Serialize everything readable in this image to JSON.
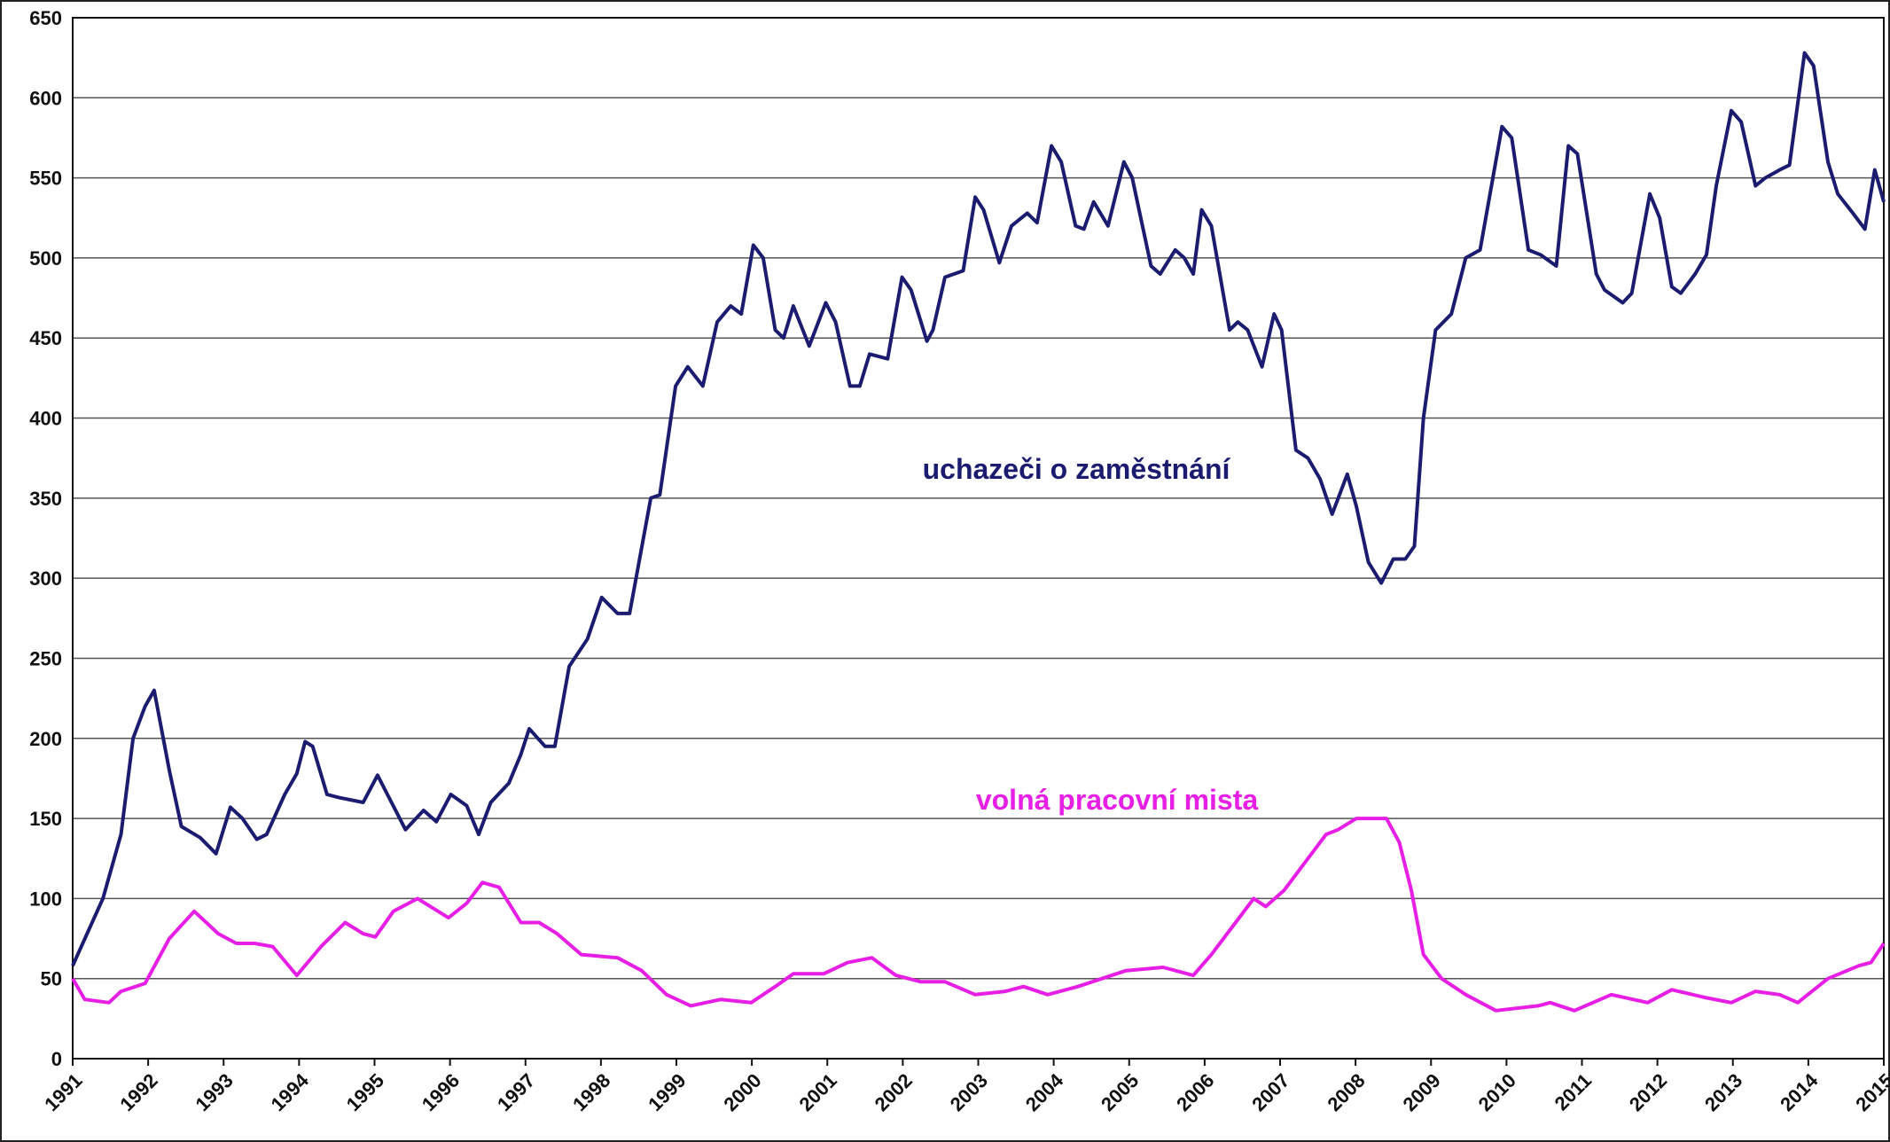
{
  "chart_data": {
    "type": "line",
    "xlim": [
      1991,
      2015
    ],
    "xticks": [
      1991,
      1992,
      1993,
      1994,
      1995,
      1996,
      1997,
      1998,
      1999,
      2000,
      2001,
      2002,
      2003,
      2004,
      2005,
      2006,
      2007,
      2008,
      2009,
      2010,
      2011,
      2012,
      2013,
      2014,
      2015
    ],
    "ylim": [
      0,
      650
    ],
    "yticks": [
      0,
      50,
      100,
      150,
      200,
      250,
      300,
      350,
      400,
      450,
      500,
      550,
      600,
      650
    ],
    "grid": true,
    "annotations": [
      "uchazeči o zaměstnání",
      "volná pracovní mista"
    ],
    "series": [
      {
        "name": "uchazeči o zaměstnání",
        "color": "#1b1b6f",
        "x": [
          1991.0,
          1991.4,
          1991.64,
          1991.8,
          1991.96,
          1992.08,
          1992.28,
          1992.44,
          1992.69,
          1992.9,
          1993.09,
          1993.25,
          1993.44,
          1993.57,
          1993.81,
          1993.97,
          1994.08,
          1994.18,
          1994.37,
          1994.53,
          1994.85,
          1995.04,
          1995.17,
          1995.41,
          1995.65,
          1995.82,
          1996.01,
          1996.22,
          1996.38,
          1996.54,
          1996.78,
          1996.94,
          1997.05,
          1997.26,
          1997.39,
          1997.58,
          1997.82,
          1998.01,
          1998.22,
          1998.38,
          1998.66,
          1998.78,
          1998.99,
          1999.15,
          1999.35,
          1999.54,
          1999.72,
          1999.86,
          2000.02,
          2000.15,
          2000.31,
          2000.42,
          2000.55,
          2000.76,
          2000.98,
          2001.11,
          2001.3,
          2001.43,
          2001.56,
          2001.8,
          2001.99,
          2002.11,
          2002.32,
          2002.4,
          2002.56,
          2002.8,
          2002.96,
          2003.07,
          2003.28,
          2003.44,
          2003.65,
          2003.78,
          2003.97,
          2004.1,
          2004.29,
          2004.4,
          2004.53,
          2004.72,
          2004.93,
          2005.04,
          2005.29,
          2005.41,
          2005.61,
          2005.73,
          2005.85,
          2005.96,
          2006.09,
          2006.33,
          2006.44,
          2006.57,
          2006.76,
          2006.92,
          2007.02,
          2007.21,
          2007.37,
          2007.53,
          2007.69,
          2007.89,
          2008.01,
          2008.17,
          2008.34,
          2008.5,
          2008.66,
          2008.78,
          2008.9,
          2009.06,
          2009.27,
          2009.46,
          2009.65,
          2009.94,
          2010.07,
          2010.29,
          2010.45,
          2010.66,
          2010.82,
          2010.94,
          2011.19,
          2011.3,
          2011.54,
          2011.66,
          2011.9,
          2012.03,
          2012.19,
          2012.31,
          2012.5,
          2012.65,
          2012.78,
          2012.98,
          2013.11,
          2013.3,
          2013.43,
          2013.62,
          2013.75,
          2013.95,
          2014.07,
          2014.26,
          2014.39,
          2014.59,
          2014.75,
          2014.88,
          2015.0
        ],
        "values": [
          58,
          100,
          140,
          200,
          220,
          230,
          180,
          145,
          138,
          128,
          157,
          150,
          137,
          140,
          165,
          178,
          198,
          195,
          165,
          163,
          160,
          177,
          165,
          143,
          155,
          148,
          165,
          158,
          140,
          160,
          172,
          190,
          206,
          195,
          195,
          245,
          262,
          288,
          278,
          278,
          350,
          352,
          420,
          432,
          420,
          460,
          470,
          465,
          508,
          500,
          455,
          450,
          470,
          445,
          472,
          460,
          420,
          420,
          440,
          437,
          488,
          480,
          448,
          455,
          488,
          492,
          538,
          530,
          497,
          520,
          528,
          522,
          570,
          560,
          520,
          518,
          535,
          520,
          560,
          550,
          495,
          490,
          505,
          500,
          490,
          530,
          520,
          455,
          460,
          455,
          432,
          465,
          455,
          380,
          375,
          362,
          340,
          365,
          345,
          310,
          297,
          312,
          312,
          320,
          400,
          455,
          465,
          500,
          505,
          582,
          575,
          505,
          502,
          495,
          570,
          565,
          490,
          480,
          472,
          478,
          540,
          525,
          482,
          478,
          490,
          502,
          545,
          592,
          585,
          545,
          550,
          555,
          558,
          628,
          620,
          560,
          540,
          528,
          518,
          555,
          535
        ]
      },
      {
        "name": "volná pracovní mista",
        "color": "#e61ee6",
        "x": [
          1991.0,
          1991.16,
          1991.48,
          1991.64,
          1991.96,
          1992.28,
          1992.61,
          1992.93,
          1993.17,
          1993.41,
          1993.65,
          1993.97,
          1994.29,
          1994.61,
          1994.85,
          1995.01,
          1995.25,
          1995.57,
          1995.74,
          1995.98,
          1996.22,
          1996.43,
          1996.65,
          1996.94,
          1997.18,
          1997.42,
          1997.74,
          1998.22,
          1998.54,
          1998.87,
          1999.19,
          1999.59,
          1999.99,
          2000.31,
          2000.55,
          2000.95,
          2001.27,
          2001.59,
          2001.91,
          2002.24,
          2002.56,
          2002.96,
          2003.36,
          2003.6,
          2003.92,
          2004.32,
          2004.64,
          2004.96,
          2005.45,
          2005.85,
          2006.09,
          2006.41,
          2006.65,
          2006.81,
          2007.05,
          2007.37,
          2007.61,
          2007.77,
          2008.01,
          2008.41,
          2008.58,
          2008.74,
          2008.9,
          2009.14,
          2009.46,
          2009.86,
          2010.42,
          2010.58,
          2010.9,
          2011.39,
          2011.87,
          2012.19,
          2012.65,
          2012.98,
          2013.3,
          2013.62,
          2013.86,
          2014.26,
          2014.67,
          2014.83,
          2015.0
        ],
        "values": [
          50,
          37,
          35,
          42,
          47,
          75,
          92,
          78,
          72,
          72,
          70,
          52,
          70,
          85,
          78,
          76,
          92,
          100,
          95,
          88,
          97,
          110,
          107,
          85,
          85,
          78,
          65,
          63,
          55,
          40,
          33,
          37,
          35,
          45,
          53,
          53,
          60,
          63,
          52,
          48,
          48,
          40,
          42,
          45,
          40,
          45,
          50,
          55,
          57,
          52,
          65,
          85,
          100,
          95,
          105,
          125,
          140,
          143,
          150,
          150,
          135,
          105,
          65,
          50,
          40,
          30,
          33,
          35,
          30,
          40,
          35,
          43,
          38,
          35,
          42,
          40,
          35,
          50,
          58,
          60,
          72
        ]
      }
    ]
  }
}
